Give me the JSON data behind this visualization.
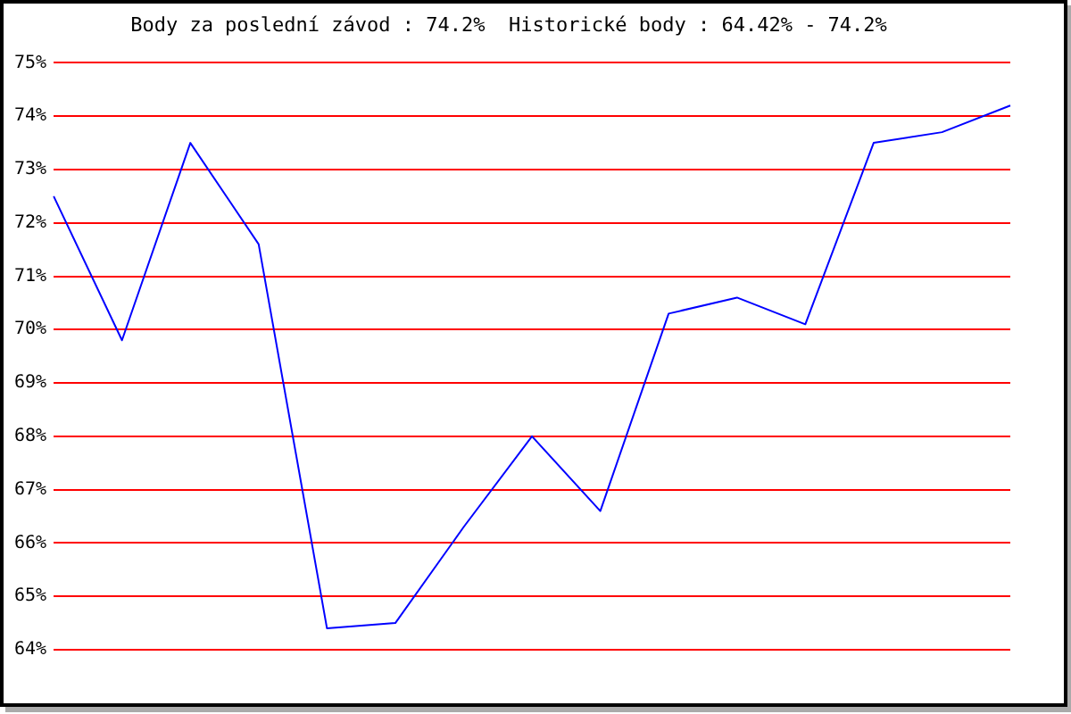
{
  "chart_data": {
    "type": "line",
    "title": "Body za poslední závod : 74.2%  Historické body : 64.42% - 74.2%",
    "categories": [
      null,
      null,
      null,
      null,
      null,
      null,
      null,
      null,
      null,
      null,
      null,
      null,
      null,
      null,
      null
    ],
    "series": [
      {
        "color": "#0000ff",
        "values": [
          72.5,
          69.8,
          73.5,
          71.6,
          64.4,
          64.5,
          66.3,
          68.0,
          66.6,
          70.3,
          70.6,
          70.1,
          73.5,
          73.7,
          74.2
        ]
      }
    ],
    "ylim": [
      64,
      75
    ],
    "yticks": [
      {
        "value": 64,
        "label": "64%"
      },
      {
        "value": 65,
        "label": "65%"
      },
      {
        "value": 66,
        "label": "66%"
      },
      {
        "value": 67,
        "label": "67%"
      },
      {
        "value": 68,
        "label": "68%"
      },
      {
        "value": 69,
        "label": "69%"
      },
      {
        "value": 70,
        "label": "70%"
      },
      {
        "value": 71,
        "label": "71%"
      },
      {
        "value": 72,
        "label": "72%"
      },
      {
        "value": 73,
        "label": "73%"
      },
      {
        "value": 74,
        "label": "74%"
      },
      {
        "value": 75,
        "label": "75%"
      }
    ],
    "grid": "y",
    "legend": false,
    "marker": "none",
    "line_style": "solid",
    "tick_labels": "y"
  }
}
